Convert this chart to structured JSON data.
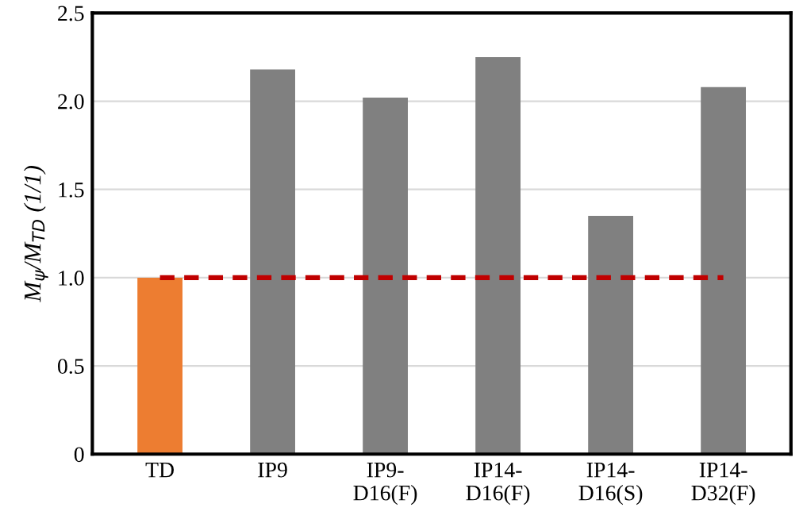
{
  "chart_data": {
    "type": "bar",
    "ylabel": "M$_{ψ}$/M$_{TD}$ (1/1)",
    "categories": [
      "TD",
      "IP9",
      "IP9-\nD16(F)",
      "IP14-\nD16(F)",
      "IP14-\nD16(S)",
      "IP14-\nD32(F)"
    ],
    "values": [
      1.0,
      2.18,
      2.02,
      2.25,
      1.35,
      2.08
    ],
    "colors": [
      "#ed7d31",
      "#808080",
      "#808080",
      "#808080",
      "#808080",
      "#808080"
    ],
    "ylim": [
      0,
      2.5
    ],
    "yticks": [
      {
        "value": 0,
        "label": "0"
      },
      {
        "value": 0.5,
        "label": "0.5"
      },
      {
        "value": 1.0,
        "label": "1.0"
      },
      {
        "value": 1.5,
        "label": "1.5"
      },
      {
        "value": 2.0,
        "label": "2.0"
      },
      {
        "value": 2.5,
        "label": "2.5"
      }
    ],
    "grid": "y",
    "ref_lines": [
      {
        "axis": "y",
        "value": 1.0,
        "label": null,
        "color": "#c00000",
        "line_style": "dashed"
      }
    ]
  }
}
